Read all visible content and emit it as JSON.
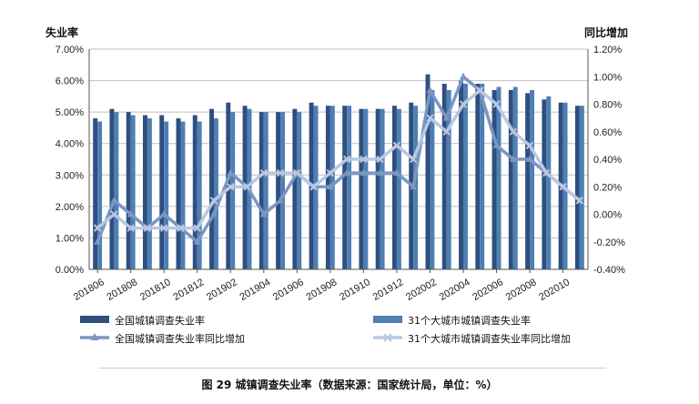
{
  "chart_data": {
    "type": "bar",
    "left_axis_title": "失业率",
    "right_axis_title": "同比增加",
    "y_left_ticks": [
      "0.00%",
      "1.00%",
      "2.00%",
      "3.00%",
      "4.00%",
      "5.00%",
      "6.00%",
      "7.00%"
    ],
    "y_right_ticks": [
      "-0.40%",
      "-0.20%",
      "0.00%",
      "0.20%",
      "0.40%",
      "0.60%",
      "0.80%",
      "1.00%",
      "1.20%"
    ],
    "ylim_left": [
      0,
      7
    ],
    "ylim_right": [
      -0.4,
      1.2
    ],
    "x_tick_labels": [
      "201806",
      "201808",
      "201810",
      "201812",
      "201902",
      "201904",
      "201906",
      "201908",
      "201910",
      "201912",
      "202002",
      "202004",
      "202006",
      "202008",
      "202010"
    ],
    "categories": [
      "201806",
      "201807",
      "201808",
      "201809",
      "201810",
      "201811",
      "201812",
      "201901",
      "201902",
      "201903",
      "201904",
      "201905",
      "201906",
      "201907",
      "201908",
      "201909",
      "201910",
      "201911",
      "201912",
      "202001",
      "202002",
      "202003",
      "202004",
      "202005",
      "202006",
      "202007",
      "202008",
      "202009",
      "202010",
      "202011"
    ],
    "series": [
      {
        "name": "全国城镇调查失业率",
        "kind": "bar",
        "axis": "left",
        "color": "#2e4f7f",
        "values": [
          4.8,
          5.1,
          5.0,
          4.9,
          4.9,
          4.8,
          4.9,
          5.1,
          5.3,
          5.2,
          5.0,
          5.0,
          5.1,
          5.3,
          5.2,
          5.2,
          5.1,
          5.1,
          5.2,
          5.3,
          6.2,
          5.9,
          6.0,
          5.9,
          5.7,
          5.7,
          5.6,
          5.4,
          5.3,
          5.2
        ]
      },
      {
        "name": "31个大城市城镇调查失业率",
        "kind": "bar",
        "axis": "left",
        "color": "#4f7fb3",
        "values": [
          4.7,
          5.0,
          4.9,
          4.8,
          4.7,
          4.7,
          4.7,
          4.8,
          5.0,
          5.1,
          5.0,
          5.0,
          5.0,
          5.2,
          5.2,
          5.2,
          5.1,
          5.1,
          5.1,
          5.2,
          5.7,
          5.7,
          5.9,
          5.9,
          5.8,
          5.8,
          5.7,
          5.5,
          5.3,
          5.2
        ]
      },
      {
        "name": "全国城镇调查失业率同比增加",
        "kind": "line",
        "axis": "right",
        "color": "#7b96c4",
        "marker": "triangle",
        "values": [
          -0.2,
          0.1,
          0.0,
          -0.1,
          0.0,
          -0.1,
          -0.2,
          0.0,
          0.3,
          0.2,
          0.0,
          0.1,
          0.3,
          0.2,
          0.2,
          0.3,
          0.3,
          0.3,
          0.3,
          0.2,
          0.9,
          0.7,
          1.0,
          0.9,
          0.5,
          0.4,
          0.4,
          0.3,
          0.2,
          0.1
        ]
      },
      {
        "name": "31个大城市城镇调查失业率同比增加",
        "kind": "line",
        "axis": "right",
        "color": "#b9c8e1",
        "marker": "x",
        "values": [
          -0.1,
          0.0,
          -0.1,
          -0.1,
          -0.1,
          -0.1,
          -0.1,
          0.1,
          0.2,
          0.2,
          0.3,
          0.3,
          0.3,
          0.2,
          0.3,
          0.4,
          0.4,
          0.4,
          0.5,
          0.4,
          0.7,
          0.6,
          0.8,
          0.9,
          0.8,
          0.6,
          0.5,
          0.3,
          0.2,
          0.1
        ]
      }
    ]
  },
  "caption": "图 29 城镇调查失业率（数据来源：国家统计局，单位：%）"
}
